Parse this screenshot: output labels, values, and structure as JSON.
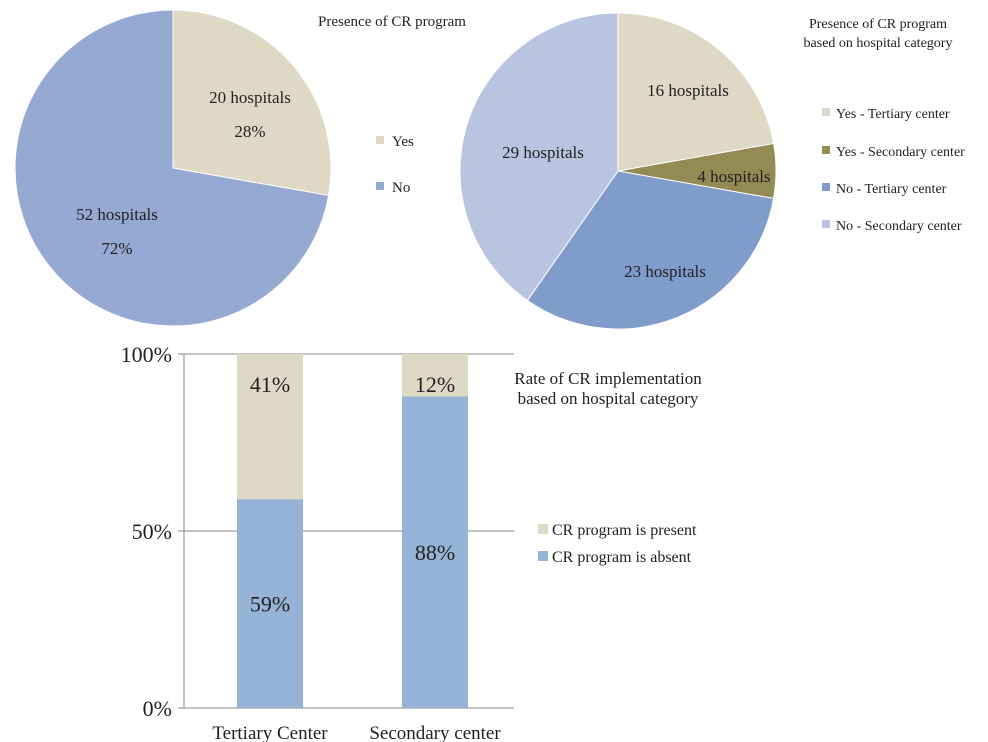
{
  "colors": {
    "yes": "#ddd9c4",
    "no": "#95a9d3",
    "yes_tertiary": "#ddd9c4",
    "yes_secondary": "#948a54",
    "no_tertiary": "#7f9ccb",
    "no_secondary": "#b8c4e0",
    "present": "#ddd9c4",
    "absent": "#95b3d7",
    "axis": "#888888",
    "grid": "#888888"
  },
  "chart_data": [
    {
      "type": "pie",
      "title": "Presence of CR program",
      "labels": [
        "Yes",
        "No"
      ],
      "values": [
        20,
        52
      ],
      "data_labels": [
        {
          "count": "20 hospitals",
          "pct": "28%"
        },
        {
          "count": "52 hospitals",
          "pct": "72%"
        }
      ],
      "legend": [
        "Yes",
        "No"
      ],
      "legend_position": "right"
    },
    {
      "type": "pie",
      "title_lines": [
        "Presence of CR program",
        "based on hospital category"
      ],
      "labels": [
        "Yes - Tertiary center",
        "Yes - Secondary center",
        "No - Tertiary center",
        "No - Secondary center"
      ],
      "values": [
        16,
        4,
        23,
        29
      ],
      "data_labels": [
        "16 hospitals",
        "4 hospitals",
        "23 hospitals",
        "29 hospitals"
      ],
      "legend": [
        "Yes - Tertiary center",
        "Yes - Secondary center",
        "No - Tertiary center",
        "No - Secondary center"
      ],
      "legend_position": "right"
    },
    {
      "type": "bar",
      "stacked": true,
      "title_lines": [
        "Rate of CR implementation",
        "based on hospital category"
      ],
      "categories": [
        "Tertiary Center",
        "Secondary center"
      ],
      "series": [
        {
          "name": "CR program is absent",
          "values": [
            59,
            88
          ],
          "labels": [
            "59%",
            "88%"
          ]
        },
        {
          "name": "CR program is present",
          "values": [
            41,
            12
          ],
          "labels": [
            "41%",
            "12%"
          ]
        }
      ],
      "yticks": [
        "0%",
        "50%",
        "100%"
      ],
      "ylim": [
        0,
        100
      ],
      "grid": true,
      "legend": [
        "CR program is present",
        "CR program is absent"
      ],
      "legend_position": "right"
    }
  ]
}
